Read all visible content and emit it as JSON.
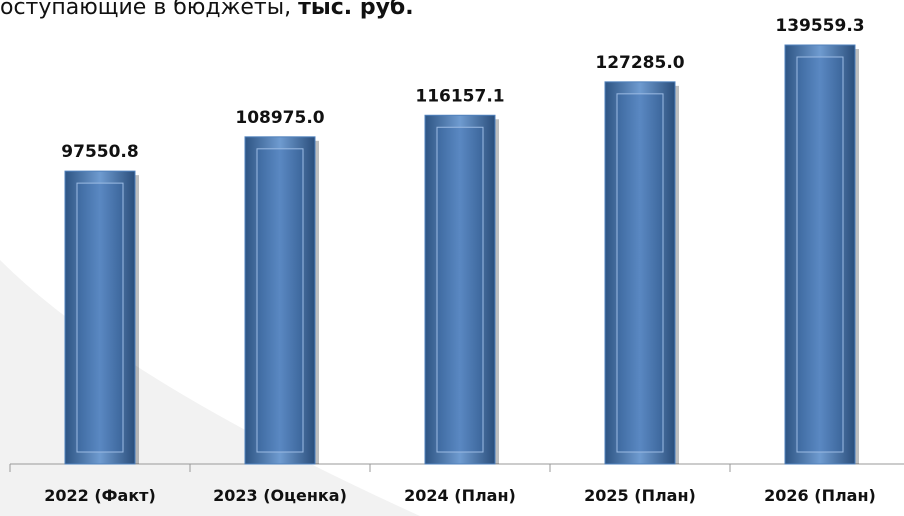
{
  "chart_data": {
    "type": "bar",
    "title": "оступающие в бюджеты,",
    "title_unit": "тыс. руб.",
    "categories": [
      "2022 (Факт)",
      "2023 (Оценка)",
      "2024 (План)",
      "2025 (План)",
      "2026 (План)"
    ],
    "values": [
      97550.8,
      108975.0,
      116157.1,
      127285.0,
      139559.3
    ],
    "value_labels": [
      "97550.8",
      "108975.0",
      "116157.1",
      "127285.0",
      "139559.3"
    ],
    "color": "#4f81bd"
  }
}
